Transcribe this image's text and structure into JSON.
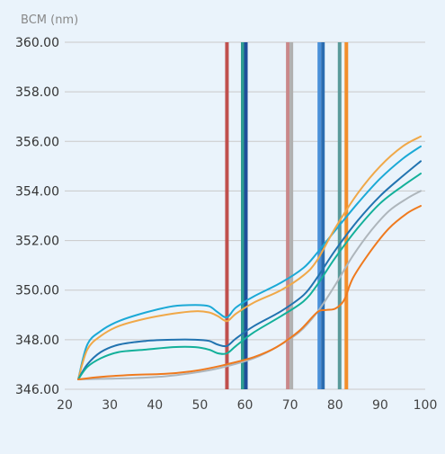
{
  "chart_data": {
    "type": "line",
    "title": "",
    "ylabel": "BCM (nm)",
    "xlabel": "",
    "xlim": [
      20,
      100
    ],
    "ylim": [
      346,
      360
    ],
    "x_ticks": [
      "20",
      "30",
      "40",
      "50",
      "60",
      "70",
      "80",
      "90",
      "100"
    ],
    "y_ticks": [
      "346.00",
      "348.00",
      "350.00",
      "352.00",
      "354.00",
      "356.00",
      "358.00",
      "360.00"
    ],
    "grid": "horizontal",
    "legend": "none",
    "background": "#eaf3fb",
    "gridline_color": "#c9c9c9",
    "vlines": [
      {
        "x": 56.0,
        "color": "#c0504d"
      },
      {
        "x": 59.5,
        "color": "#2e9c92"
      },
      {
        "x": 60.2,
        "color": "#1f4e9a"
      },
      {
        "x": 69.5,
        "color": "#c9888a"
      },
      {
        "x": 70.3,
        "color": "#b0b0b0"
      },
      {
        "x": 76.5,
        "color": "#4a90d9"
      },
      {
        "x": 77.3,
        "color": "#2b6cb0"
      },
      {
        "x": 81.0,
        "color": "#5a9a9a"
      },
      {
        "x": 82.5,
        "color": "#f28e2b"
      }
    ],
    "series": [
      {
        "color": "#1ba9d6",
        "x": [
          23,
          25,
          28,
          32,
          38,
          44,
          49,
          52,
          54,
          56,
          58,
          62,
          68,
          73,
          76,
          80,
          85,
          90,
          95,
          99
        ],
        "y": [
          346.4,
          347.8,
          348.35,
          348.75,
          349.1,
          349.35,
          349.4,
          349.35,
          349.1,
          348.9,
          349.3,
          349.75,
          350.3,
          350.9,
          351.5,
          352.4,
          353.5,
          354.5,
          355.3,
          355.8
        ]
      },
      {
        "color": "#f0a848",
        "x": [
          23,
          25,
          28,
          32,
          38,
          44,
          49,
          52,
          54,
          56,
          58,
          62,
          68,
          73,
          76,
          80,
          85,
          90,
          95,
          99
        ],
        "y": [
          346.4,
          347.6,
          348.15,
          348.55,
          348.85,
          349.05,
          349.15,
          349.1,
          348.95,
          348.75,
          349.05,
          349.5,
          350.0,
          350.6,
          351.2,
          352.5,
          353.9,
          355.0,
          355.8,
          356.2
        ]
      },
      {
        "color": "#2173b0",
        "x": [
          23,
          25,
          28,
          32,
          38,
          44,
          49,
          52,
          54,
          56,
          58,
          62,
          68,
          73,
          76,
          80,
          85,
          90,
          95,
          99
        ],
        "y": [
          346.4,
          347.0,
          347.5,
          347.8,
          347.95,
          348.0,
          348.0,
          347.95,
          347.8,
          347.75,
          348.05,
          348.55,
          349.15,
          349.8,
          350.5,
          351.6,
          352.8,
          353.8,
          354.6,
          355.2
        ]
      },
      {
        "color": "#13b09a",
        "x": [
          23,
          25,
          28,
          32,
          38,
          44,
          49,
          52,
          54,
          56,
          58,
          62,
          68,
          73,
          76,
          80,
          85,
          90,
          95,
          99
        ],
        "y": [
          346.4,
          346.9,
          347.25,
          347.5,
          347.6,
          347.7,
          347.7,
          347.6,
          347.45,
          347.45,
          347.75,
          348.3,
          348.95,
          349.55,
          350.2,
          351.3,
          352.5,
          353.5,
          354.2,
          354.7
        ]
      },
      {
        "color": "#aeb6bc",
        "x": [
          23,
          28,
          35,
          42,
          48,
          53,
          57,
          62,
          67,
          72,
          76,
          80,
          84,
          88,
          92,
          96,
          99
        ],
        "y": [
          346.4,
          346.42,
          346.45,
          346.52,
          346.65,
          346.8,
          346.98,
          347.25,
          347.7,
          348.3,
          349.1,
          350.2,
          351.4,
          352.4,
          353.2,
          353.7,
          354.0
        ]
      },
      {
        "color": "#ef7a1e",
        "x": [
          23,
          28,
          35,
          42,
          48,
          53,
          57,
          62,
          67,
          72,
          76,
          78,
          80,
          82,
          84,
          88,
          92,
          96,
          99
        ],
        "y": [
          346.4,
          346.5,
          346.58,
          346.62,
          346.72,
          346.88,
          347.05,
          347.3,
          347.7,
          348.35,
          349.1,
          349.2,
          349.25,
          349.6,
          350.5,
          351.6,
          352.5,
          353.1,
          353.4
        ]
      }
    ]
  }
}
